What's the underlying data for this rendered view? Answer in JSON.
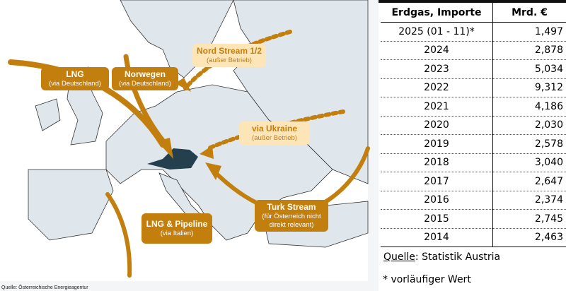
{
  "map": {
    "labels": {
      "lng_de": {
        "title": "LNG",
        "sub": "(via Deutschland)"
      },
      "norway": {
        "title": "Norwegen",
        "sub": "(via Deutschland)"
      },
      "nordstream": {
        "title": "Nord Stream 1/2",
        "sub": "(außer Betrieb)"
      },
      "ukraine": {
        "title": "via Ukraine",
        "sub": "(außer Betrieb)"
      },
      "turkstream": {
        "title": "Turk Stream",
        "sub": "(für Österreich nicht direkt relevant)"
      },
      "lng_it": {
        "title": "LNG & Pipeline",
        "sub": "(via Italien)"
      }
    },
    "source": "Quelle: Österreichische Energieagentur",
    "colors": {
      "route": "#c37f0d",
      "inactive": "#fde5b8",
      "austria": "#24404f",
      "land": "#dfe6ec"
    }
  },
  "table": {
    "headers": [
      "Erdgas, Importe",
      "Mrd. €"
    ],
    "rows": [
      [
        "2025 (01 - 11)*",
        "1,497"
      ],
      [
        "2024",
        "2,878"
      ],
      [
        "2023",
        "5,034"
      ],
      [
        "2022",
        "9,312"
      ],
      [
        "2021",
        "4,186"
      ],
      [
        "2020",
        "2,030"
      ],
      [
        "2019",
        "2,578"
      ],
      [
        "2018",
        "3,040"
      ],
      [
        "2017",
        "2,647"
      ],
      [
        "2016",
        "2,374"
      ],
      [
        "2015",
        "2,745"
      ],
      [
        "2014",
        "2,463"
      ]
    ],
    "source_label": "Quelle",
    "source_value": ": Statistik Austria",
    "footnote": "* vorläufiger Wert"
  }
}
